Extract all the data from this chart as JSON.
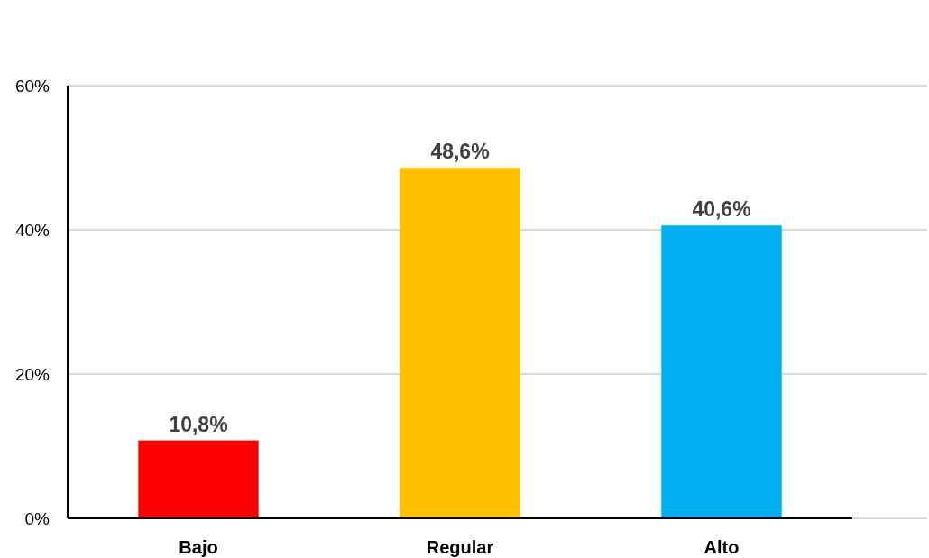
{
  "chart_data": {
    "type": "bar",
    "categories": [
      "Bajo",
      "Regular",
      "Alto"
    ],
    "values": [
      10.8,
      48.6,
      40.6
    ],
    "colors": [
      "#ff0000",
      "#ffc000",
      "#00b0f0"
    ],
    "value_labels": [
      "10,8%",
      "48,6%",
      "40,6%"
    ],
    "ylim": [
      0,
      60
    ],
    "yticks": [
      {
        "value": 0,
        "label": "0%"
      },
      {
        "value": 20,
        "label": "20%"
      },
      {
        "value": 40,
        "label": "40%"
      },
      {
        "value": 60,
        "label": "60%"
      }
    ],
    "grid": true
  }
}
